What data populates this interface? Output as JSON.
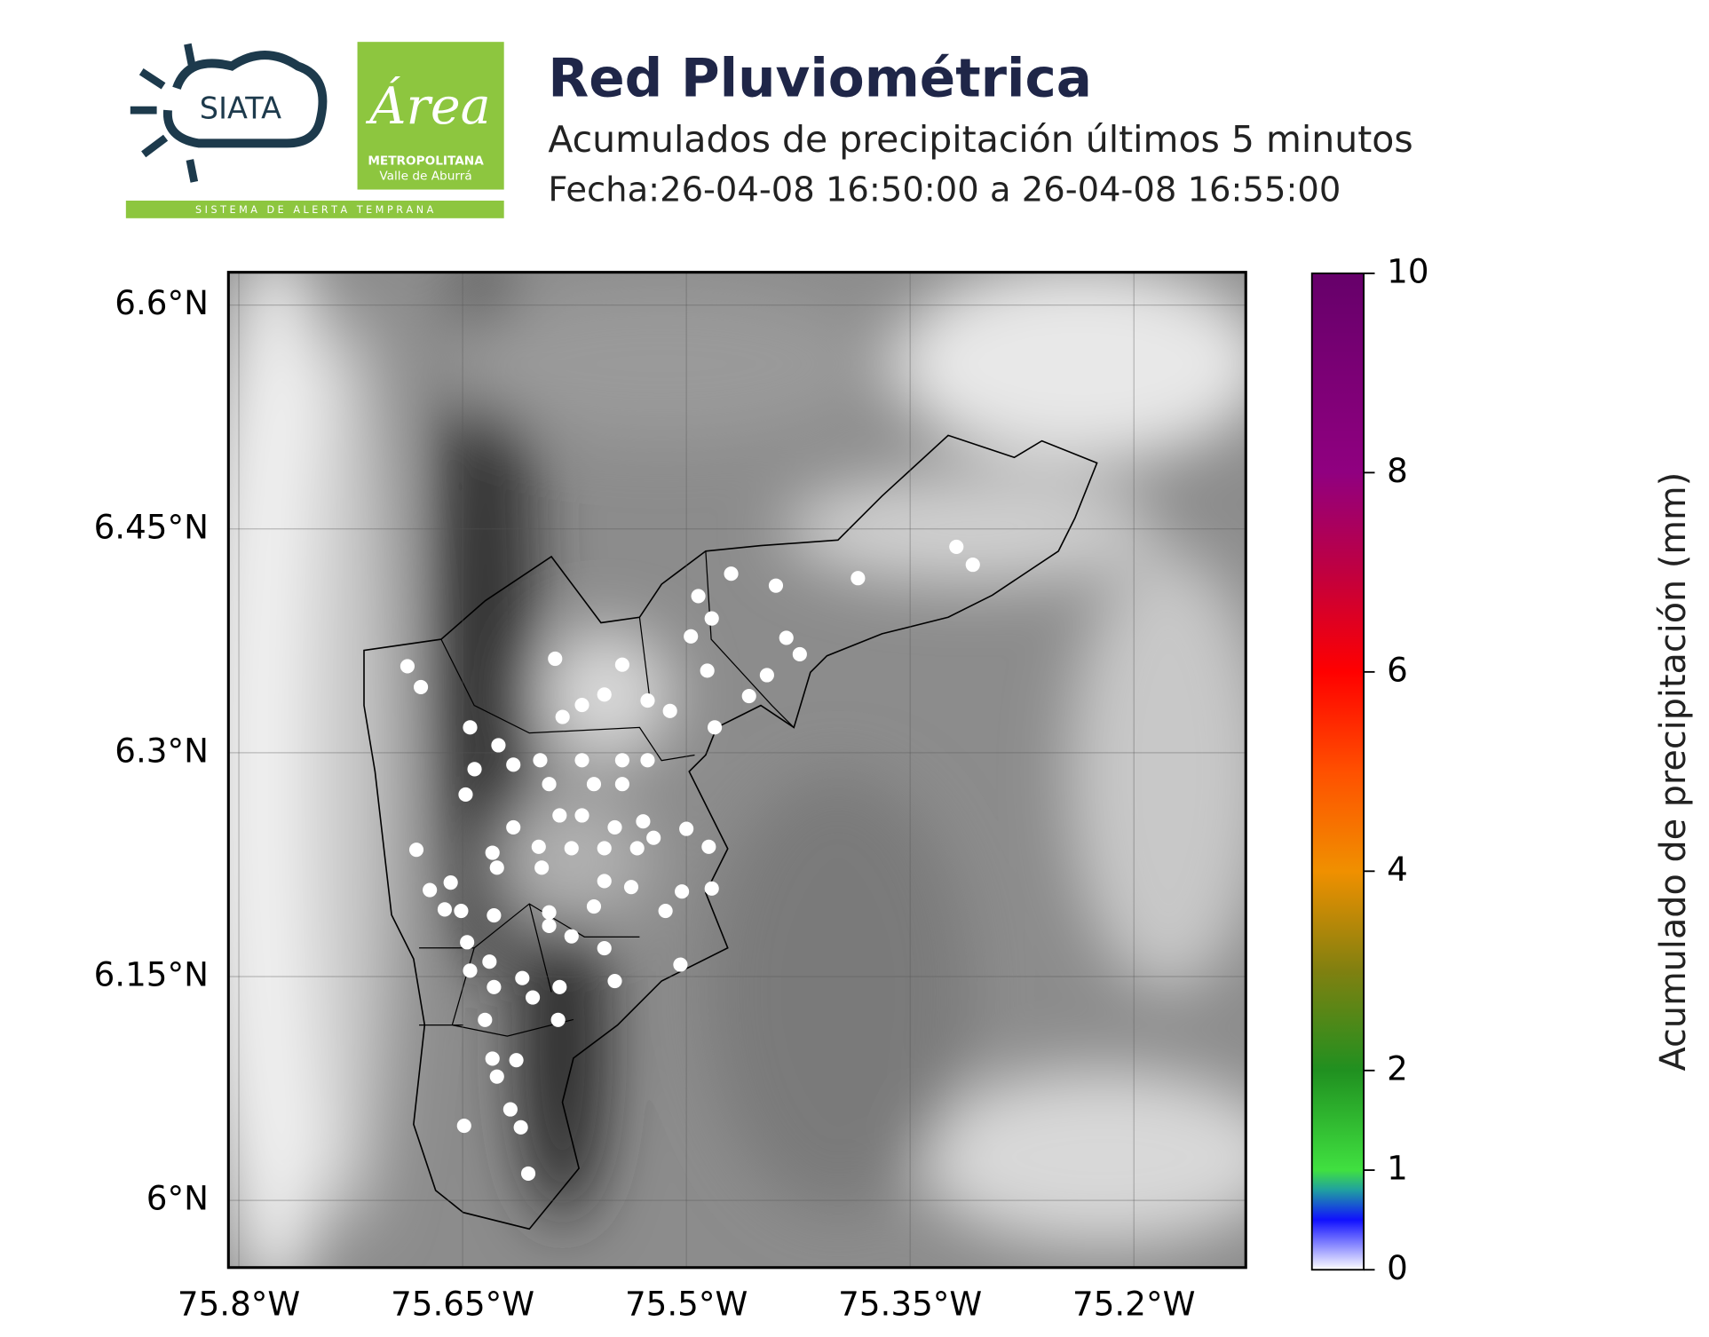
{
  "header": {
    "title": "Red Pluviométrica",
    "subtitle": "Acumulados de precipitación últimos 5 minutos",
    "date": "Fecha:26-04-08 16:50:00 a 26-04-08 16:55:00"
  },
  "logos": {
    "siata": "SIATA",
    "area": "Área",
    "metropolitana": "METROPOLITANA",
    "valle": "Valle de Aburrá",
    "tagline": "S I S T E M A   D E   A L E R T A   T E M P R A N A"
  },
  "chart_data": {
    "type": "scatter",
    "color": "#ffffff",
    "xlim": [
      -75.807,
      -75.125
    ],
    "ylim": [
      5.955,
      6.622
    ],
    "xticks": [
      {
        "value": -75.8,
        "label": "75.8°W"
      },
      {
        "value": -75.65,
        "label": "75.65°W"
      },
      {
        "value": -75.5,
        "label": "75.5°W"
      },
      {
        "value": -75.35,
        "label": "75.35°W"
      },
      {
        "value": -75.2,
        "label": "75.2°W"
      }
    ],
    "yticks": [
      {
        "value": 6.6,
        "label": "6.6°N"
      },
      {
        "value": 6.45,
        "label": "6.45°N"
      },
      {
        "value": 6.3,
        "label": "6.3°N"
      },
      {
        "value": 6.15,
        "label": "6.15°N"
      },
      {
        "value": 6.0,
        "label": "6°N"
      }
    ],
    "grid": true,
    "x": [
      -75.687,
      -75.678,
      -75.588,
      -75.543,
      -75.492,
      -75.483,
      -75.47,
      -75.44,
      -75.497,
      -75.486,
      -75.433,
      -75.424,
      -75.446,
      -75.458,
      -75.385,
      -75.319,
      -75.308,
      -75.583,
      -75.57,
      -75.555,
      -75.526,
      -75.511,
      -75.481,
      -75.645,
      -75.626,
      -75.598,
      -75.616,
      -75.57,
      -75.543,
      -75.526,
      -75.642,
      -75.648,
      -75.592,
      -75.562,
      -75.543,
      -75.616,
      -75.585,
      -75.57,
      -75.548,
      -75.529,
      -75.522,
      -75.5,
      -75.485,
      -75.681,
      -75.63,
      -75.599,
      -75.577,
      -75.555,
      -75.533,
      -75.627,
      -75.597,
      -75.555,
      -75.537,
      -75.503,
      -75.483,
      -75.672,
      -75.658,
      -75.662,
      -75.651,
      -75.629,
      -75.592,
      -75.562,
      -75.514,
      -75.647,
      -75.592,
      -75.577,
      -75.555,
      -75.632,
      -75.645,
      -75.629,
      -75.61,
      -75.603,
      -75.585,
      -75.548,
      -75.504,
      -75.635,
      -75.586,
      -75.63,
      -75.614,
      -75.627,
      -75.618,
      -75.611,
      -75.649,
      -75.606
    ],
    "values": [
      6.358,
      6.344,
      6.363,
      6.359,
      6.405,
      6.39,
      6.42,
      6.412,
      6.378,
      6.355,
      6.377,
      6.366,
      6.352,
      6.338,
      6.417,
      6.438,
      6.426,
      6.324,
      6.332,
      6.339,
      6.335,
      6.328,
      6.317,
      6.317,
      6.305,
      6.295,
      6.292,
      6.295,
      6.295,
      6.295,
      6.289,
      6.272,
      6.279,
      6.279,
      6.279,
      6.25,
      6.258,
      6.258,
      6.25,
      6.254,
      6.243,
      6.249,
      6.237,
      6.235,
      6.233,
      6.237,
      6.236,
      6.236,
      6.236,
      6.223,
      6.223,
      6.214,
      6.21,
      6.207,
      6.209,
      6.208,
      6.213,
      6.195,
      6.194,
      6.191,
      6.193,
      6.197,
      6.194,
      6.173,
      6.184,
      6.177,
      6.169,
      6.16,
      6.154,
      6.143,
      6.149,
      6.136,
      6.143,
      6.147,
      6.158,
      6.121,
      6.121,
      6.095,
      6.094,
      6.083,
      6.061,
      6.049,
      6.05,
      6.018
    ],
    "colorbar": {
      "label": "Acumulado de precipitación (mm)",
      "lim": [
        0,
        10
      ],
      "ticks": [
        0,
        1,
        2,
        4,
        6,
        8,
        10
      ],
      "colors": [
        {
          "value": 0,
          "color": "#ffffff"
        },
        {
          "value": 0.5,
          "color": "#1010ff"
        },
        {
          "value": 0.8,
          "color": "#20a0a0"
        },
        {
          "value": 1,
          "color": "#40e040"
        },
        {
          "value": 2,
          "color": "#209020"
        },
        {
          "value": 3,
          "color": "#808010"
        },
        {
          "value": 4,
          "color": "#f09000"
        },
        {
          "value": 5,
          "color": "#ff5000"
        },
        {
          "value": 6,
          "color": "#ff0000"
        },
        {
          "value": 7,
          "color": "#c00040"
        },
        {
          "value": 8,
          "color": "#900080"
        },
        {
          "value": 10,
          "color": "#66006a"
        }
      ]
    }
  }
}
